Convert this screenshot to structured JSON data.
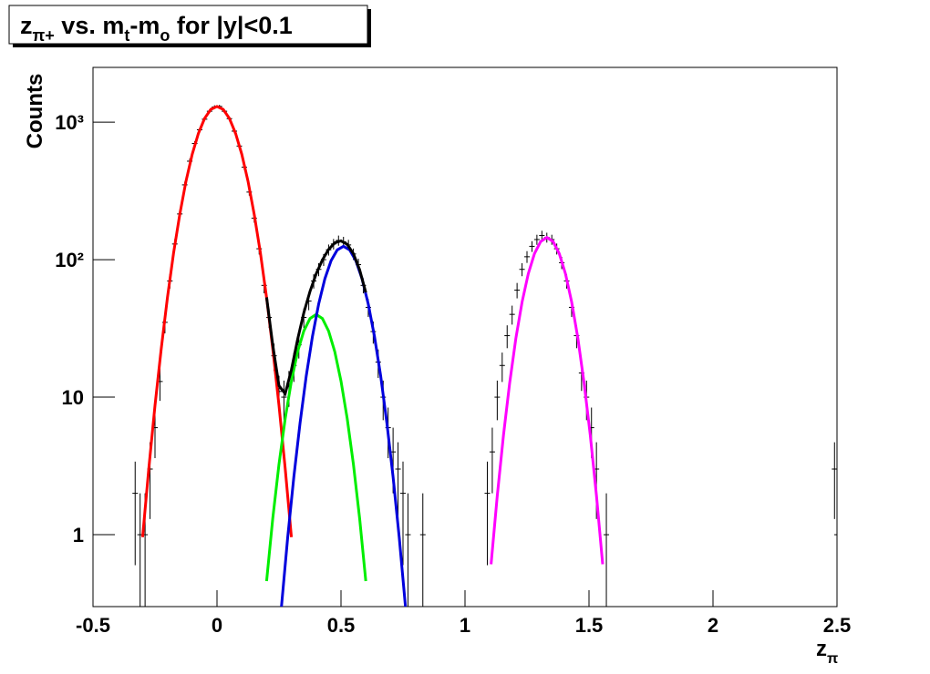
{
  "chart_data": {
    "type": "scatter",
    "title": [
      "z",
      "π+",
      " vs. m",
      "t",
      "-m",
      "o",
      " for |y|<0.1"
    ],
    "x_label": [
      "z",
      "π"
    ],
    "y_label": "Counts",
    "log_y": true,
    "xlim": [
      -0.5,
      2.5
    ],
    "ylim": [
      0.3,
      2500
    ],
    "xticks": [
      -0.5,
      0,
      0.5,
      1,
      1.5,
      2,
      2.5
    ],
    "yticks": [
      1,
      10,
      {
        "value": 100,
        "label": "10²"
      },
      {
        "value": 1000,
        "label": "10³"
      }
    ],
    "series": [
      {
        "type": "errorbar",
        "color": "#000000",
        "x": [
          -0.33,
          -0.31,
          -0.29,
          -0.27,
          -0.25,
          -0.23,
          -0.21,
          -0.19,
          -0.17,
          -0.15,
          -0.13,
          -0.11,
          -0.09,
          -0.07,
          -0.05,
          -0.03,
          -0.01,
          0.01,
          0.03,
          0.05,
          0.07,
          0.09,
          0.11,
          0.13,
          0.15,
          0.17,
          0.19,
          0.21,
          0.23,
          0.25,
          0.27,
          0.29,
          0.31,
          0.33,
          0.35,
          0.37,
          0.39,
          0.41,
          0.43,
          0.45,
          0.47,
          0.49,
          0.51,
          0.53,
          0.55,
          0.57,
          0.59,
          0.61,
          0.63,
          0.65,
          0.67,
          0.69,
          0.71,
          0.73,
          0.75,
          0.77,
          0.83,
          1.09,
          1.11,
          1.13,
          1.15,
          1.17,
          1.19,
          1.21,
          1.23,
          1.25,
          1.27,
          1.29,
          1.31,
          1.33,
          1.35,
          1.37,
          1.39,
          1.41,
          1.43,
          1.45,
          1.47,
          1.49,
          1.51,
          1.53,
          1.57,
          2.49,
          2.5
        ],
        "values": [
          2,
          1,
          1,
          3,
          6,
          13,
          35,
          70,
          130,
          215,
          350,
          520,
          700,
          880,
          1050,
          1200,
          1290,
          1300,
          1200,
          1060,
          860,
          670,
          470,
          310,
          200,
          120,
          65,
          38,
          20,
          11,
          10,
          12,
          17,
          24,
          38,
          50,
          70,
          85,
          100,
          118,
          130,
          138,
          135,
          128,
          110,
          92,
          65,
          45,
          30,
          18,
          10,
          6,
          4,
          3,
          2,
          1,
          1,
          2,
          4,
          10,
          17,
          28,
          40,
          60,
          85,
          105,
          125,
          140,
          150,
          145,
          140,
          120,
          95,
          70,
          45,
          28,
          15,
          10,
          6,
          3,
          1,
          3,
          1
        ],
        "errors": [
          1.4,
          1,
          1,
          1.7,
          2.4,
          3.6,
          5.9,
          8.4,
          11.4,
          14.7,
          18.7,
          22.8,
          26.5,
          29.7,
          32.4,
          34.6,
          35.9,
          36.1,
          34.6,
          32.6,
          29.3,
          25.9,
          21.7,
          17.6,
          14.1,
          11,
          8.1,
          6.2,
          4.5,
          3.3,
          3.2,
          3.5,
          4.1,
          4.9,
          6.2,
          7.1,
          8.4,
          9.2,
          10,
          10.9,
          11.4,
          11.7,
          11.6,
          11.3,
          10.5,
          9.6,
          8.1,
          6.7,
          5.5,
          4.2,
          3.2,
          2.4,
          2,
          1.7,
          1.4,
          1,
          1,
          1.4,
          2,
          3.2,
          4.1,
          5.3,
          6.3,
          7.7,
          9.2,
          10.2,
          11.2,
          11.8,
          12.2,
          12,
          11.8,
          11,
          9.7,
          8.4,
          6.7,
          5.3,
          3.9,
          3.2,
          2.4,
          1.7,
          1,
          1.7,
          1
        ]
      },
      {
        "type": "line",
        "color": "#ff0000",
        "x": [
          -0.3,
          -0.275,
          -0.25,
          -0.225,
          -0.2,
          -0.175,
          -0.15,
          -0.125,
          -0.1,
          -0.075,
          -0.05,
          -0.025,
          0,
          0.025,
          0.05,
          0.075,
          0.1,
          0.125,
          0.15,
          0.175,
          0.2,
          0.225,
          0.25,
          0.275,
          0.3
        ],
        "values": [
          0.96,
          3.03,
          8.7,
          22.4,
          52.7,
          112,
          214,
          372,
          584,
          828,
          1064,
          1237,
          1300,
          1237,
          1064,
          828,
          584,
          372,
          214,
          112,
          52.7,
          22.4,
          8.7,
          3.03,
          0.96
        ]
      },
      {
        "type": "line",
        "color": "#00ee00",
        "x": [
          0.2,
          0.225,
          0.25,
          0.275,
          0.3,
          0.325,
          0.35,
          0.375,
          0.4,
          0.425,
          0.45,
          0.475,
          0.5,
          0.525,
          0.55,
          0.575,
          0.6
        ],
        "values": [
          0.46,
          1.32,
          3.26,
          7.0,
          13.1,
          21.4,
          30.3,
          37.3,
          40,
          37.3,
          30.3,
          21.4,
          13.1,
          7.0,
          3.26,
          1.32,
          0.46
        ]
      },
      {
        "type": "line",
        "color": "#0000dd",
        "x": [
          0.26,
          0.285,
          0.31,
          0.335,
          0.36,
          0.385,
          0.41,
          0.435,
          0.46,
          0.485,
          0.51,
          0.535,
          0.56,
          0.585,
          0.61,
          0.635,
          0.66,
          0.685,
          0.71,
          0.735,
          0.76
        ],
        "values": [
          0.3,
          0.95,
          2.64,
          6.5,
          14.3,
          27.7,
          47.6,
          72.6,
          98.2,
          117.7,
          125,
          117.7,
          98.2,
          72.6,
          47.6,
          27.7,
          14.3,
          6.5,
          2.64,
          0.95,
          0.3
        ]
      },
      {
        "type": "line",
        "color": "#ff00ff",
        "x": [
          1.105,
          1.13,
          1.155,
          1.18,
          1.205,
          1.23,
          1.255,
          1.28,
          1.305,
          1.33,
          1.355,
          1.38,
          1.405,
          1.43,
          1.455,
          1.48,
          1.505,
          1.53,
          1.555
        ],
        "values": [
          0.61,
          1.92,
          5.29,
          12.7,
          26.8,
          49.2,
          78.9,
          110.7,
          135.5,
          145,
          135.5,
          110.7,
          78.9,
          49.2,
          26.8,
          12.7,
          5.29,
          1.92,
          0.61
        ]
      },
      {
        "type": "line",
        "color": "#000000",
        "x": [
          0.2,
          0.225,
          0.25,
          0.275,
          0.3,
          0.325,
          0.35,
          0.375,
          0.4,
          0.425,
          0.45,
          0.475,
          0.5,
          0.525,
          0.55,
          0.575,
          0.6
        ],
        "values": [
          53.2,
          23.8,
          12.1,
          10.6,
          15.8,
          26.3,
          41,
          58.8,
          78.9,
          99.5,
          118.6,
          132.5,
          136.9,
          129.3,
          110.4,
          84.5,
          57.7
        ]
      }
    ]
  }
}
